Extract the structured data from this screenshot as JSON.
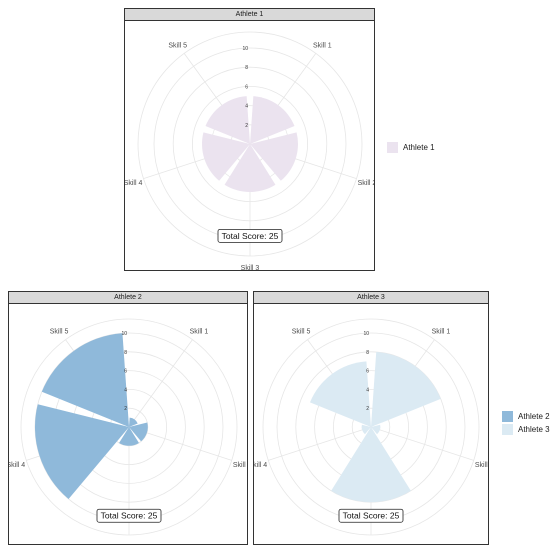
{
  "chart_data": {
    "type": "polar-bar",
    "categories": [
      "Skill 1",
      "Skill 2",
      "Skill 3",
      "Skill 4",
      "Skill 5"
    ],
    "radial_ticks": [
      "2",
      "4",
      "6",
      "8",
      "10"
    ],
    "rlim": [
      0,
      10
    ],
    "grid": true,
    "total_label": "Total Score: 25",
    "panels": [
      {
        "title": "Athlete 1",
        "series": [
          {
            "name": "Athlete 1",
            "values": [
              5,
              5,
              5,
              5,
              5
            ]
          }
        ]
      },
      {
        "title": "Athlete 2",
        "series": [
          {
            "name": "Athlete 2",
            "values": [
              1,
              2,
              2,
              10,
              10
            ]
          }
        ]
      },
      {
        "title": "Athlete 3",
        "series": [
          {
            "name": "Athlete 3",
            "values": [
              8,
              1,
              8,
              1,
              7
            ]
          }
        ]
      }
    ],
    "legends": [
      {
        "entries": [
          {
            "name": "Athlete 1",
            "color": "#ebe3ef"
          }
        ]
      },
      {
        "entries": [
          {
            "name": "Athlete 2",
            "color": "#8fb9da"
          },
          {
            "name": "Athlete 3",
            "color": "#dbeaf3"
          }
        ]
      }
    ]
  }
}
